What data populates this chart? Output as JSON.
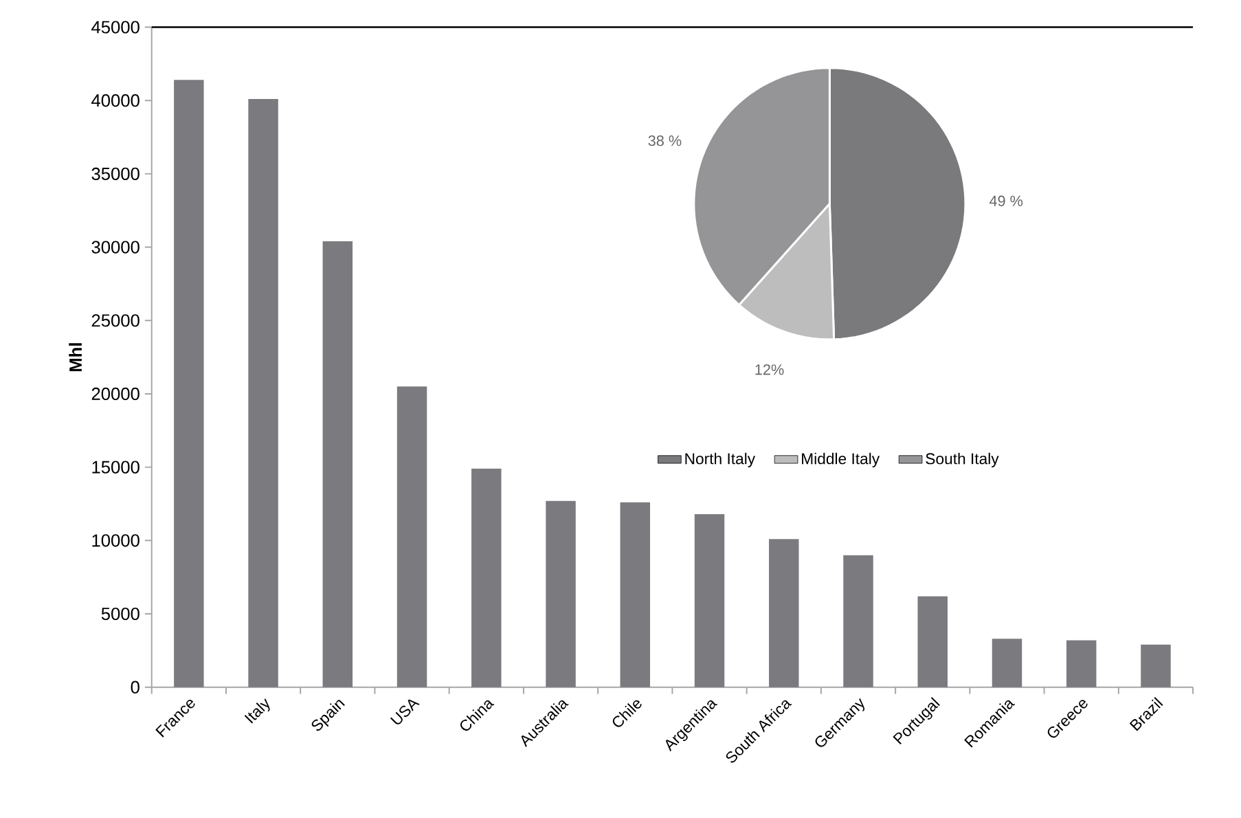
{
  "chart_data": [
    {
      "type": "bar",
      "ylabel": "**Mhl**",
      "categories": [
        "France",
        "Italy",
        "Spain",
        "USA",
        "China",
        "Australia",
        "Chile",
        "Argentina",
        "South Africa",
        "Germany",
        "Portugal",
        "Romania",
        "Greece",
        "Brazil"
      ],
      "values": [
        41400,
        40100,
        30400,
        20500,
        14900,
        12700,
        12600,
        11800,
        10100,
        9000,
        6200,
        3300,
        3200,
        2900
      ],
      "color": "#7b7b7f",
      "ylim": [
        0,
        45000
      ],
      "yticks": [
        0,
        5000,
        10000,
        15000,
        20000,
        25000,
        30000,
        35000,
        40000,
        45000
      ],
      "grid": false
    },
    {
      "type": "pie",
      "categories": [
        "North Italy",
        "Middle Italy",
        "South Italy"
      ],
      "values": [
        49,
        12,
        38
      ],
      "colors": [
        "#7a7a7c",
        "#bdbdbd",
        "#959597"
      ],
      "value_labels": [
        "49 %",
        "12%",
        "38 %"
      ],
      "legend": "bottom"
    }
  ]
}
